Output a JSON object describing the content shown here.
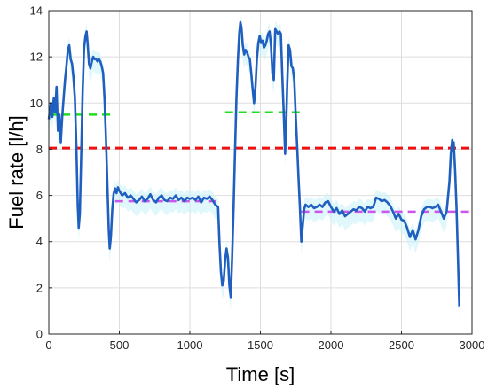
{
  "chart_data": {
    "type": "line",
    "xlabel": "Time [s]",
    "ylabel": "Fuel rate [l/h]",
    "xlim": [
      0,
      3000
    ],
    "ylim": [
      0,
      14
    ],
    "xticks": [
      0,
      500,
      1000,
      1500,
      2000,
      2500,
      3000
    ],
    "yticks": [
      0,
      2,
      4,
      6,
      8,
      10,
      12,
      14
    ],
    "grid": true,
    "legend": "none",
    "colors": {
      "fuel": "#1f5fbf",
      "band": "#c6f2f7",
      "overall_mean": "#ee1111",
      "high_mean": "#22dd22",
      "low_mean": "#cc55ee",
      "grid": "#dedede",
      "axes": "#262626"
    },
    "series": [
      {
        "key": "fuel",
        "points": [
          [
            0,
            9.3
          ],
          [
            15,
            10.0
          ],
          [
            25,
            9.4
          ],
          [
            35,
            10.2
          ],
          [
            45,
            9.6
          ],
          [
            55,
            10.7
          ],
          [
            65,
            8.8
          ],
          [
            75,
            9.5
          ],
          [
            85,
            8.3
          ],
          [
            95,
            9.4
          ],
          [
            105,
            10.2
          ],
          [
            115,
            11.0
          ],
          [
            125,
            11.6
          ],
          [
            135,
            12.3
          ],
          [
            145,
            12.5
          ],
          [
            155,
            11.9
          ],
          [
            165,
            11.7
          ],
          [
            175,
            11.1
          ],
          [
            185,
            10.2
          ],
          [
            195,
            8.2
          ],
          [
            205,
            5.6
          ],
          [
            212,
            4.6
          ],
          [
            220,
            5.2
          ],
          [
            230,
            7.8
          ],
          [
            240,
            10.5
          ],
          [
            250,
            12.4
          ],
          [
            260,
            12.9
          ],
          [
            268,
            13.1
          ],
          [
            275,
            12.6
          ],
          [
            285,
            11.7
          ],
          [
            295,
            11.5
          ],
          [
            305,
            11.8
          ],
          [
            315,
            12.0
          ],
          [
            325,
            11.9
          ],
          [
            335,
            11.9
          ],
          [
            345,
            11.8
          ],
          [
            355,
            11.9
          ],
          [
            365,
            11.8
          ],
          [
            375,
            11.6
          ],
          [
            385,
            11.3
          ],
          [
            395,
            10.2
          ],
          [
            405,
            8.5
          ],
          [
            415,
            6.5
          ],
          [
            425,
            4.5
          ],
          [
            432,
            3.7
          ],
          [
            440,
            4.2
          ],
          [
            450,
            5.4
          ],
          [
            460,
            6.1
          ],
          [
            470,
            6.3
          ],
          [
            480,
            6.1
          ],
          [
            490,
            6.35
          ],
          [
            500,
            6.2
          ],
          [
            520,
            6.0
          ],
          [
            540,
            6.1
          ],
          [
            560,
            5.9
          ],
          [
            580,
            6.0
          ],
          [
            600,
            5.85
          ],
          [
            620,
            5.7
          ],
          [
            640,
            5.8
          ],
          [
            660,
            5.95
          ],
          [
            680,
            5.75
          ],
          [
            700,
            5.85
          ],
          [
            720,
            6.05
          ],
          [
            740,
            5.8
          ],
          [
            760,
            5.7
          ],
          [
            780,
            5.9
          ],
          [
            800,
            6.0
          ],
          [
            820,
            5.8
          ],
          [
            840,
            5.75
          ],
          [
            860,
            5.9
          ],
          [
            880,
            5.85
          ],
          [
            900,
            6.0
          ],
          [
            920,
            5.8
          ],
          [
            940,
            5.9
          ],
          [
            960,
            5.75
          ],
          [
            980,
            5.9
          ],
          [
            1000,
            5.85
          ],
          [
            1020,
            5.9
          ],
          [
            1040,
            5.8
          ],
          [
            1060,
            5.95
          ],
          [
            1080,
            5.7
          ],
          [
            1100,
            5.9
          ],
          [
            1120,
            5.85
          ],
          [
            1140,
            5.95
          ],
          [
            1160,
            5.8
          ],
          [
            1180,
            5.6
          ],
          [
            1200,
            5.5
          ],
          [
            1210,
            3.9
          ],
          [
            1220,
            2.7
          ],
          [
            1230,
            2.1
          ],
          [
            1240,
            2.3
          ],
          [
            1250,
            3.2
          ],
          [
            1260,
            3.7
          ],
          [
            1270,
            3.3
          ],
          [
            1280,
            2.1
          ],
          [
            1290,
            1.6
          ],
          [
            1300,
            3.4
          ],
          [
            1310,
            5.5
          ],
          [
            1320,
            7.9
          ],
          [
            1330,
            10.2
          ],
          [
            1340,
            11.8
          ],
          [
            1350,
            13.0
          ],
          [
            1358,
            13.5
          ],
          [
            1365,
            13.3
          ],
          [
            1375,
            12.5
          ],
          [
            1385,
            12.1
          ],
          [
            1395,
            12.3
          ],
          [
            1405,
            12.2
          ],
          [
            1415,
            12.0
          ],
          [
            1425,
            11.9
          ],
          [
            1435,
            11.3
          ],
          [
            1445,
            10.6
          ],
          [
            1455,
            10.0
          ],
          [
            1465,
            10.7
          ],
          [
            1475,
            11.9
          ],
          [
            1485,
            12.6
          ],
          [
            1495,
            12.9
          ],
          [
            1505,
            12.6
          ],
          [
            1515,
            12.7
          ],
          [
            1525,
            12.4
          ],
          [
            1535,
            12.5
          ],
          [
            1545,
            12.7
          ],
          [
            1555,
            13.0
          ],
          [
            1565,
            13.1
          ],
          [
            1575,
            12.5
          ],
          [
            1585,
            11.3
          ],
          [
            1595,
            11.0
          ],
          [
            1605,
            13.2
          ],
          [
            1615,
            13.1
          ],
          [
            1625,
            13.0
          ],
          [
            1635,
            13.1
          ],
          [
            1645,
            13.0
          ],
          [
            1655,
            11.2
          ],
          [
            1665,
            9.6
          ],
          [
            1675,
            7.8
          ],
          [
            1682,
            8.9
          ],
          [
            1690,
            10.8
          ],
          [
            1700,
            12.5
          ],
          [
            1710,
            12.3
          ],
          [
            1720,
            11.6
          ],
          [
            1730,
            11.5
          ],
          [
            1740,
            11.0
          ],
          [
            1750,
            9.5
          ],
          [
            1760,
            8.2
          ],
          [
            1770,
            6.8
          ],
          [
            1780,
            5.5
          ],
          [
            1790,
            4.0
          ],
          [
            1800,
            4.7
          ],
          [
            1810,
            5.4
          ],
          [
            1820,
            5.6
          ],
          [
            1840,
            5.5
          ],
          [
            1860,
            5.6
          ],
          [
            1880,
            5.45
          ],
          [
            1900,
            5.5
          ],
          [
            1920,
            5.6
          ],
          [
            1940,
            5.5
          ],
          [
            1960,
            5.7
          ],
          [
            1980,
            5.75
          ],
          [
            2000,
            5.5
          ],
          [
            2020,
            5.3
          ],
          [
            2040,
            5.45
          ],
          [
            2060,
            5.2
          ],
          [
            2080,
            5.35
          ],
          [
            2100,
            5.1
          ],
          [
            2120,
            5.2
          ],
          [
            2140,
            5.3
          ],
          [
            2160,
            5.4
          ],
          [
            2180,
            5.35
          ],
          [
            2200,
            5.5
          ],
          [
            2220,
            5.45
          ],
          [
            2240,
            5.3
          ],
          [
            2260,
            5.5
          ],
          [
            2280,
            5.45
          ],
          [
            2300,
            5.5
          ],
          [
            2320,
            5.9
          ],
          [
            2340,
            5.85
          ],
          [
            2360,
            5.75
          ],
          [
            2380,
            5.8
          ],
          [
            2400,
            5.7
          ],
          [
            2420,
            5.55
          ],
          [
            2440,
            5.3
          ],
          [
            2460,
            5.0
          ],
          [
            2480,
            5.2
          ],
          [
            2500,
            4.95
          ],
          [
            2520,
            4.9
          ],
          [
            2540,
            4.6
          ],
          [
            2560,
            4.2
          ],
          [
            2580,
            4.5
          ],
          [
            2600,
            4.1
          ],
          [
            2620,
            4.5
          ],
          [
            2640,
            5.1
          ],
          [
            2660,
            5.4
          ],
          [
            2680,
            5.5
          ],
          [
            2700,
            5.5
          ],
          [
            2720,
            5.45
          ],
          [
            2740,
            5.5
          ],
          [
            2760,
            5.6
          ],
          [
            2780,
            5.3
          ],
          [
            2800,
            5.0
          ],
          [
            2820,
            5.3
          ],
          [
            2840,
            6.6
          ],
          [
            2850,
            7.8
          ],
          [
            2860,
            8.4
          ],
          [
            2865,
            7.9
          ],
          [
            2870,
            8.3
          ],
          [
            2880,
            7.1
          ],
          [
            2890,
            5.5
          ],
          [
            2900,
            3.4
          ],
          [
            2910,
            1.2
          ]
        ]
      },
      {
        "key": "overall_mean",
        "style": "dashed",
        "points": [
          [
            0,
            8.05
          ],
          [
            3000,
            8.05
          ]
        ]
      },
      {
        "key": "high_mean_1",
        "style": "dashed",
        "points": [
          [
            0,
            9.5
          ],
          [
            470,
            9.5
          ]
        ]
      },
      {
        "key": "high_mean_2",
        "style": "dashed",
        "points": [
          [
            1250,
            9.6
          ],
          [
            1800,
            9.6
          ]
        ]
      },
      {
        "key": "low_mean_1",
        "style": "dashed",
        "points": [
          [
            470,
            5.75
          ],
          [
            1220,
            5.75
          ]
        ]
      },
      {
        "key": "low_mean_2",
        "style": "dashed",
        "points": [
          [
            1790,
            5.3
          ],
          [
            3000,
            5.3
          ]
        ]
      }
    ]
  }
}
